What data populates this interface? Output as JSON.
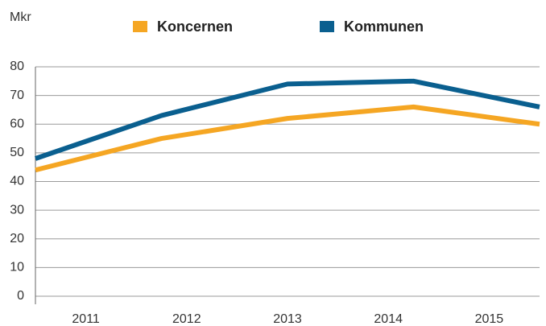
{
  "chart_data": {
    "type": "line",
    "y_label": "Mkr",
    "categories": [
      "2011",
      "2012",
      "2013",
      "2014",
      "2015"
    ],
    "series": [
      {
        "name": "Koncernen",
        "color": "#f5a623",
        "values": [
          44,
          55,
          62,
          66,
          60
        ]
      },
      {
        "name": "Kommunen",
        "color": "#0a5f8f",
        "values": [
          48,
          63,
          74,
          75,
          66
        ]
      }
    ],
    "ylim": [
      0,
      80
    ],
    "yticks": [
      0,
      10,
      20,
      30,
      40,
      50,
      60,
      70,
      80
    ],
    "grid": true
  }
}
